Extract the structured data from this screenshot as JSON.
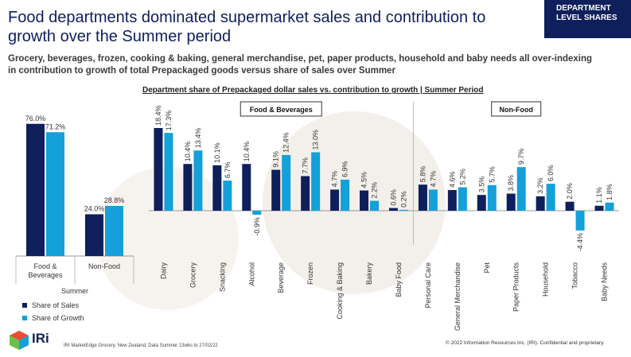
{
  "header": {
    "title": "Food departments dominated supermarket sales and contribution to growth over the Summer period",
    "tag_line1": "DEPARTMENT",
    "tag_line2": "LEVEL SHARES",
    "subtitle_line1": "Grocery, beverages, frozen, cooking & baking, general merchandise, pet, paper products, household and baby needs all over-indexing",
    "subtitle_line2": "in contribution to growth of total Prepackaged goods versus share of sales over Summer"
  },
  "colors": {
    "share_of_sales": "#0e1f5b",
    "share_of_growth": "#14a0d8",
    "brand": "#0e1f5b"
  },
  "legend": {
    "sales": "Share of Sales",
    "growth": "Share of Growth"
  },
  "chart_data": [
    {
      "type": "bar",
      "title": "",
      "xlabel": "Summer",
      "ylabel": "",
      "ylim": [
        0,
        80
      ],
      "categories": [
        "Food & Beverages",
        "Non-Food"
      ],
      "series": [
        {
          "name": "Share of Sales",
          "values": [
            76.0,
            24.0
          ]
        },
        {
          "name": "Share of Growth",
          "values": [
            71.2,
            28.8
          ]
        }
      ]
    },
    {
      "type": "bar",
      "title": "Department share of Prepackaged dollar sales vs. contribution to growth | Summer Period",
      "xlabel": "",
      "ylabel": "",
      "ylim": [
        -5,
        19
      ],
      "groups": [
        "Food & Beverages",
        "Non-Food"
      ],
      "categories": [
        "Dairy",
        "Grocery",
        "Snacking",
        "Alcohol",
        "Beverage",
        "Frozen",
        "Cooking & Baking",
        "Bakery",
        "Baby Food",
        "Personal Care",
        "General Merchandise",
        "Pet",
        "Paper Products",
        "Household",
        "Tobacco",
        "Baby Needs"
      ],
      "series": [
        {
          "name": "Share of Sales",
          "values": [
            18.4,
            10.4,
            10.1,
            10.4,
            9.1,
            7.7,
            4.7,
            4.5,
            0.6,
            5.8,
            4.6,
            3.5,
            3.8,
            3.2,
            2.0,
            1.1
          ]
        },
        {
          "name": "Share of Growth",
          "values": [
            17.3,
            13.4,
            6.7,
            -0.9,
            12.4,
            13.0,
            6.9,
            2.2,
            0.2,
            4.7,
            5.2,
            5.7,
            9.7,
            6.0,
            -4.4,
            1.8
          ]
        }
      ]
    }
  ],
  "footer": {
    "logo_text": "IRi",
    "source": "IRI MarketEdge Grocery, New Zealand, Data Summer 13wks to 27/02/22",
    "copyright": "© 2022 Information Resources Inc. (IRI). Confidential and proprietary."
  }
}
